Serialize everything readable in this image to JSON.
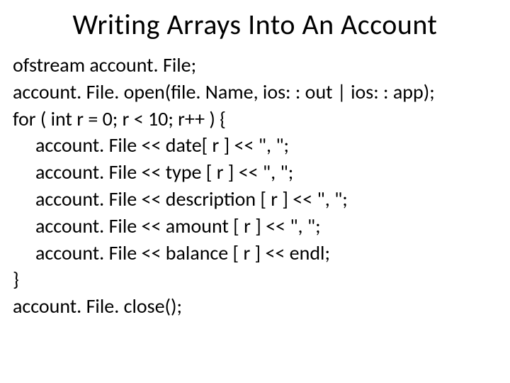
{
  "slide": {
    "title": "Writing Arrays Into An Account",
    "title_fontsize": 40,
    "title_color": "#000000",
    "body_fontsize": 28,
    "body_color": "#000000",
    "background_color": "#ffffff",
    "font_family": "Calibri",
    "code": {
      "lines": [
        {
          "text": "ofstream account. File;",
          "indent": 0
        },
        {
          "text": "account. File. open(file. Name, ios: : out | ios: : app);",
          "indent": 0
        },
        {
          "text": "for ( int r = 0; r < 10; r++ ) {",
          "indent": 0
        },
        {
          "text": "account. File << date[ r ] << \", \";",
          "indent": 1
        },
        {
          "text": "account. File << type [ r ] << \", \";",
          "indent": 1
        },
        {
          "text": "account. File << description [ r ] << \", \";",
          "indent": 1
        },
        {
          "text": "account. File << amount [ r ] << \", \";",
          "indent": 1
        },
        {
          "text": "account. File << balance [ r ] << endl;",
          "indent": 1
        },
        {
          "text": "}",
          "indent": 0
        },
        {
          "text": "account. File. close();",
          "indent": 0
        }
      ]
    }
  }
}
